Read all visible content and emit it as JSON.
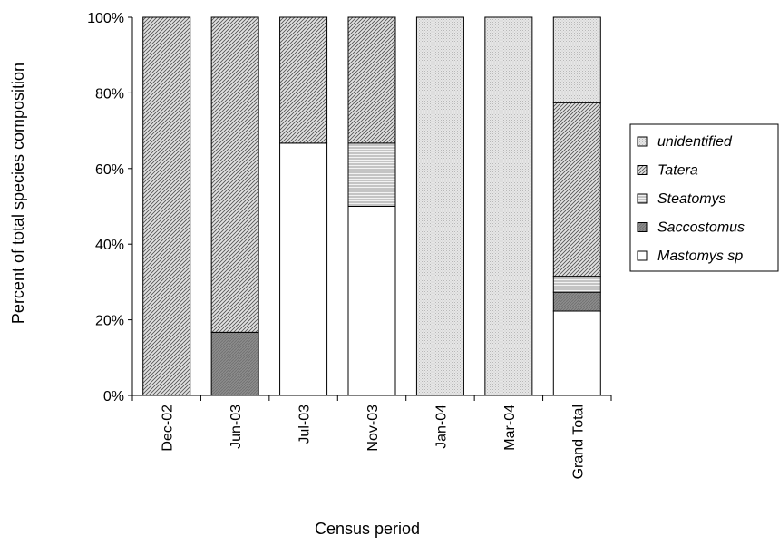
{
  "chart_data": {
    "type": "bar",
    "stacked": true,
    "normalized_percent": true,
    "categories": [
      "Dec-02",
      "Jun-03",
      "Jul-03",
      "Nov-03",
      "Jan-04",
      "Mar-04",
      "Grand Total"
    ],
    "series": [
      {
        "name": "Mastomys sp",
        "pattern": "white",
        "values": [
          0,
          0,
          66.7,
          50,
          0,
          0,
          22.3
        ]
      },
      {
        "name": "Saccostomus",
        "pattern": "dark-grey",
        "values": [
          0,
          16.7,
          0,
          0,
          0,
          0,
          5.0
        ]
      },
      {
        "name": "Steatomys",
        "pattern": "horizontal",
        "values": [
          0,
          0,
          0,
          16.7,
          0,
          0,
          4.2
        ]
      },
      {
        "name": "Tatera",
        "pattern": "diagonal",
        "values": [
          100,
          83.3,
          33.3,
          33.3,
          0,
          0,
          45.9
        ]
      },
      {
        "name": "unidentified",
        "pattern": "light-dots",
        "values": [
          0,
          0,
          0,
          0,
          100,
          100,
          22.6
        ]
      }
    ],
    "title": "",
    "xlabel": "Census period",
    "ylabel": "Percent of total species composition",
    "ylim": [
      0,
      100
    ],
    "yticks": [
      "0%",
      "20%",
      "40%",
      "60%",
      "80%",
      "100%"
    ],
    "legend_position": "right",
    "grid": false
  }
}
